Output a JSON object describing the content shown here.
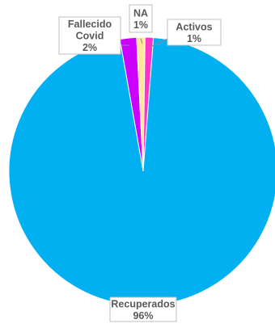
{
  "chart_data": {
    "type": "pie",
    "slices": [
      {
        "label_lines": [
          "Recuperados"
        ],
        "pct": "96%",
        "value": 96,
        "color": "#00b0f0"
      },
      {
        "label_lines": [
          "Fallecido",
          "Covid"
        ],
        "pct": "2%",
        "value": 2,
        "color": "#cc00ff"
      },
      {
        "label_lines": [
          "NA"
        ],
        "pct": "1%",
        "value": 1,
        "color": "#ffe699"
      },
      {
        "label_lines": [
          "Activos"
        ],
        "pct": "1%",
        "value": 1,
        "color": "#ff33cc"
      }
    ]
  }
}
